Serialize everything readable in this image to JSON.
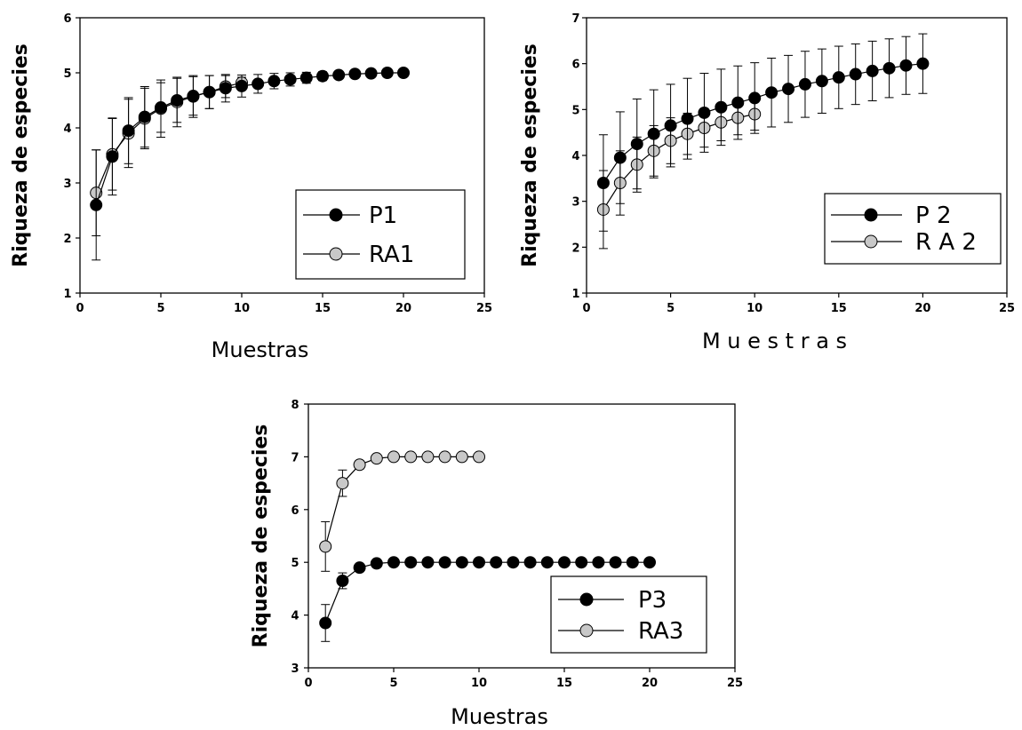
{
  "colors": {
    "p_marker": "#000000",
    "ra_marker": "#c8c8c8",
    "axis": "#000000"
  },
  "chart_data": [
    {
      "type": "line",
      "title": "",
      "xlabel": "Muestras",
      "ylabel": "Riqueza de especies",
      "xlim": [
        0,
        25
      ],
      "ylim": [
        1,
        6
      ],
      "xticks": [
        "0",
        "5",
        "10",
        "15",
        "20",
        "25"
      ],
      "yticks": [
        "1",
        "2",
        "3",
        "4",
        "5",
        "6"
      ],
      "grid": false,
      "legend_position": "bottom-right",
      "series": [
        {
          "name": "P1",
          "marker": "black",
          "x": [
            1,
            2,
            3,
            4,
            5,
            6,
            7,
            8,
            9,
            10,
            11,
            12,
            13,
            14,
            15,
            16,
            17,
            18,
            19,
            20
          ],
          "y": [
            2.6,
            3.48,
            3.95,
            4.2,
            4.37,
            4.5,
            4.58,
            4.65,
            4.72,
            4.76,
            4.8,
            4.85,
            4.88,
            4.91,
            4.94,
            4.96,
            4.98,
            4.99,
            5.0,
            5.0
          ],
          "err": [
            1.0,
            0.7,
            0.6,
            0.55,
            0.45,
            0.4,
            0.35,
            0.3,
            0.25,
            0.2,
            0.17,
            0.14,
            0.12,
            0.1,
            0.08,
            0.06,
            0.05,
            0.03,
            0.02,
            0.0
          ]
        },
        {
          "name": "RA1",
          "marker": "gray",
          "x": [
            1,
            2,
            3,
            4,
            5,
            6,
            7,
            8,
            9,
            10
          ],
          "y": [
            2.82,
            3.52,
            3.9,
            4.17,
            4.35,
            4.47,
            4.57,
            4.65,
            4.75,
            4.82
          ],
          "err": [
            0.78,
            0.65,
            0.62,
            0.55,
            0.52,
            0.45,
            0.38,
            0.3,
            0.2,
            0.1
          ]
        }
      ]
    },
    {
      "type": "line",
      "title": "",
      "xlabel": "M u e s t r a s",
      "ylabel": "Riqueza de especies",
      "xlim": [
        0,
        25
      ],
      "ylim": [
        1,
        7
      ],
      "xticks": [
        "0",
        "5",
        "10",
        "15",
        "20",
        "25"
      ],
      "yticks": [
        "1",
        "2",
        "3",
        "4",
        "5",
        "6",
        "7"
      ],
      "grid": false,
      "legend_position": "bottom-right",
      "series": [
        {
          "name": "P 2",
          "marker": "black",
          "x": [
            1,
            2,
            3,
            4,
            5,
            6,
            7,
            8,
            9,
            10,
            11,
            12,
            13,
            14,
            15,
            16,
            17,
            18,
            19,
            20
          ],
          "y": [
            3.4,
            3.95,
            4.25,
            4.47,
            4.65,
            4.8,
            4.93,
            5.05,
            5.15,
            5.25,
            5.37,
            5.45,
            5.55,
            5.62,
            5.7,
            5.77,
            5.84,
            5.9,
            5.96,
            6.0
          ],
          "err": [
            1.05,
            1.0,
            0.98,
            0.96,
            0.9,
            0.88,
            0.86,
            0.83,
            0.8,
            0.77,
            0.75,
            0.73,
            0.72,
            0.7,
            0.68,
            0.66,
            0.65,
            0.64,
            0.63,
            0.65
          ]
        },
        {
          "name": "R A 2",
          "marker": "gray",
          "x": [
            1,
            2,
            3,
            4,
            5,
            6,
            7,
            8,
            9,
            10
          ],
          "y": [
            2.82,
            3.4,
            3.8,
            4.1,
            4.32,
            4.47,
            4.6,
            4.72,
            4.82,
            4.9
          ],
          "err": [
            0.85,
            0.7,
            0.6,
            0.55,
            0.5,
            0.45,
            0.42,
            0.4,
            0.37,
            0.35
          ]
        }
      ]
    },
    {
      "type": "line",
      "title": "",
      "xlabel": "Muestras",
      "ylabel": "Riqueza de especies",
      "xlim": [
        0,
        25
      ],
      "ylim": [
        3,
        8
      ],
      "xticks": [
        "0",
        "5",
        "10",
        "15",
        "20",
        "25"
      ],
      "yticks": [
        "3",
        "4",
        "5",
        "6",
        "7",
        "8"
      ],
      "grid": false,
      "legend_position": "bottom-right",
      "series": [
        {
          "name": "P3",
          "marker": "black",
          "x": [
            1,
            2,
            3,
            4,
            5,
            6,
            7,
            8,
            9,
            10,
            11,
            12,
            13,
            14,
            15,
            16,
            17,
            18,
            19,
            20
          ],
          "y": [
            3.85,
            4.65,
            4.9,
            4.98,
            5.0,
            5.0,
            5.0,
            5.0,
            5.0,
            5.0,
            5.0,
            5.0,
            5.0,
            5.0,
            5.0,
            5.0,
            5.0,
            5.0,
            5.0,
            5.0
          ],
          "err": [
            0.35,
            0.15,
            0.05,
            0,
            0,
            0,
            0,
            0,
            0,
            0,
            0,
            0,
            0,
            0,
            0,
            0,
            0,
            0,
            0,
            0
          ]
        },
        {
          "name": "RA3",
          "marker": "gray",
          "x": [
            1,
            2,
            3,
            4,
            5,
            6,
            7,
            8,
            9,
            10
          ],
          "y": [
            5.3,
            6.5,
            6.85,
            6.97,
            7.0,
            7.0,
            7.0,
            7.0,
            7.0,
            7.0
          ],
          "err": [
            0.47,
            0.25,
            0.08,
            0,
            0,
            0,
            0,
            0,
            0,
            0
          ]
        }
      ]
    }
  ]
}
